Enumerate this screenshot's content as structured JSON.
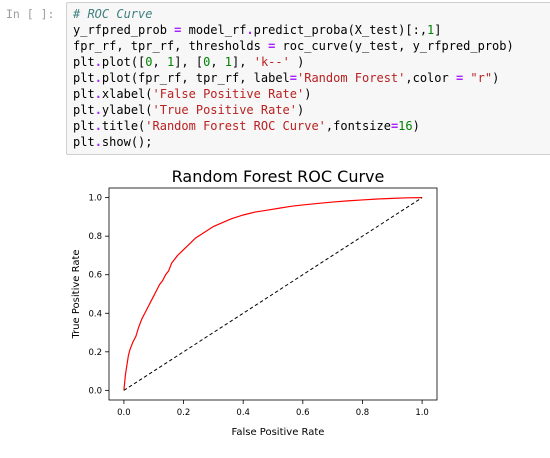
{
  "cell": {
    "prompt": "In [ ]:",
    "code_lines": [
      [
        {
          "t": "# ROC Curve",
          "c": "comment"
        }
      ],
      [
        {
          "t": "y_rfpred_prob ",
          "c": "id"
        },
        {
          "t": "=",
          "c": "op"
        },
        {
          "t": " model_rf",
          "c": "id"
        },
        {
          "t": ".",
          "c": "op"
        },
        {
          "t": "predict_proba(X_test)[:,",
          "c": "id"
        },
        {
          "t": "1",
          "c": "num"
        },
        {
          "t": "]",
          "c": "id"
        }
      ],
      [
        {
          "t": "fpr_rf, tpr_rf, thresholds ",
          "c": "id"
        },
        {
          "t": "=",
          "c": "op"
        },
        {
          "t": " roc_curve(y_test, y_rfpred_prob)",
          "c": "id"
        }
      ],
      [
        {
          "t": "plt",
          "c": "id"
        },
        {
          "t": ".",
          "c": "op"
        },
        {
          "t": "plot([",
          "c": "id"
        },
        {
          "t": "0",
          "c": "num"
        },
        {
          "t": ", ",
          "c": "id"
        },
        {
          "t": "1",
          "c": "num"
        },
        {
          "t": "], [",
          "c": "id"
        },
        {
          "t": "0",
          "c": "num"
        },
        {
          "t": ", ",
          "c": "id"
        },
        {
          "t": "1",
          "c": "num"
        },
        {
          "t": "], ",
          "c": "id"
        },
        {
          "t": "'k--'",
          "c": "str"
        },
        {
          "t": " )",
          "c": "id"
        }
      ],
      [
        {
          "t": "plt",
          "c": "id"
        },
        {
          "t": ".",
          "c": "op"
        },
        {
          "t": "plot(fpr_rf, tpr_rf, label",
          "c": "id"
        },
        {
          "t": "=",
          "c": "op"
        },
        {
          "t": "'Random Forest'",
          "c": "str"
        },
        {
          "t": ",color ",
          "c": "id"
        },
        {
          "t": "=",
          "c": "op"
        },
        {
          "t": " ",
          "c": "id"
        },
        {
          "t": "\"r\"",
          "c": "str"
        },
        {
          "t": ")",
          "c": "id"
        }
      ],
      [
        {
          "t": "plt",
          "c": "id"
        },
        {
          "t": ".",
          "c": "op"
        },
        {
          "t": "xlabel(",
          "c": "id"
        },
        {
          "t": "'False Positive Rate'",
          "c": "str"
        },
        {
          "t": ")",
          "c": "id"
        }
      ],
      [
        {
          "t": "plt",
          "c": "id"
        },
        {
          "t": ".",
          "c": "op"
        },
        {
          "t": "ylabel(",
          "c": "id"
        },
        {
          "t": "'True Positive Rate'",
          "c": "str"
        },
        {
          "t": ")",
          "c": "id"
        }
      ],
      [
        {
          "t": "plt",
          "c": "id"
        },
        {
          "t": ".",
          "c": "op"
        },
        {
          "t": "title(",
          "c": "id"
        },
        {
          "t": "'Random Forest ROC Curve'",
          "c": "str"
        },
        {
          "t": ",fontsize",
          "c": "id"
        },
        {
          "t": "=",
          "c": "op"
        },
        {
          "t": "16",
          "c": "num"
        },
        {
          "t": ")",
          "c": "id"
        }
      ],
      [
        {
          "t": "plt",
          "c": "id"
        },
        {
          "t": ".",
          "c": "op"
        },
        {
          "t": "show();",
          "c": "id"
        }
      ]
    ]
  },
  "chart_data": {
    "type": "line",
    "title": "Random Forest ROC Curve",
    "xlabel": "False Positive Rate",
    "ylabel": "True Positive Rate",
    "xlim": [
      -0.05,
      1.05
    ],
    "ylim": [
      -0.05,
      1.05
    ],
    "x_ticks": [
      "0.0",
      "0.2",
      "0.4",
      "0.6",
      "0.8",
      "1.0"
    ],
    "y_ticks": [
      "0.0",
      "0.2",
      "0.4",
      "0.6",
      "0.8",
      "1.0"
    ],
    "grid": false,
    "series": [
      {
        "color": "#ff0000",
        "style": "solid",
        "x": [
          0.0,
          0.005,
          0.01,
          0.015,
          0.02,
          0.03,
          0.04,
          0.05,
          0.06,
          0.07,
          0.08,
          0.09,
          0.1,
          0.11,
          0.12,
          0.13,
          0.14,
          0.15,
          0.16,
          0.18,
          0.2,
          0.22,
          0.24,
          0.26,
          0.28,
          0.3,
          0.33,
          0.36,
          0.4,
          0.44,
          0.48,
          0.52,
          0.56,
          0.6,
          0.65,
          0.7,
          0.75,
          0.8,
          0.85,
          0.9,
          0.95,
          1.0
        ],
        "y": [
          0.0,
          0.08,
          0.13,
          0.18,
          0.21,
          0.25,
          0.28,
          0.33,
          0.37,
          0.4,
          0.43,
          0.46,
          0.49,
          0.52,
          0.55,
          0.57,
          0.6,
          0.62,
          0.66,
          0.7,
          0.73,
          0.76,
          0.79,
          0.81,
          0.83,
          0.85,
          0.87,
          0.89,
          0.91,
          0.925,
          0.935,
          0.945,
          0.955,
          0.962,
          0.97,
          0.977,
          0.983,
          0.988,
          0.993,
          0.996,
          0.999,
          1.0
        ]
      },
      {
        "color": "#000000",
        "style": "dashed",
        "x": [
          0,
          1
        ],
        "y": [
          0,
          1
        ]
      }
    ]
  }
}
